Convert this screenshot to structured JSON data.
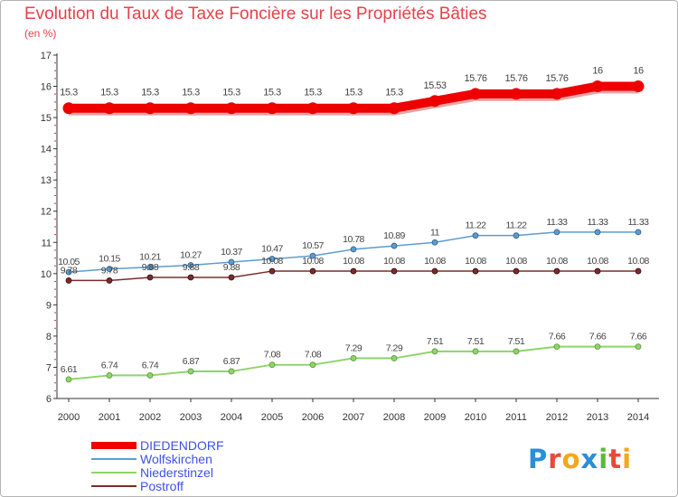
{
  "header": {
    "title": "Evolution du Taux de Taxe Foncière sur les Propriétés Bâties",
    "unit": "(en %)"
  },
  "logo": {
    "text": "Proxiti",
    "letters": [
      {
        "ch": "P",
        "color": "#2a8fd6"
      },
      {
        "ch": "r",
        "color": "#e84a3a"
      },
      {
        "ch": "o",
        "color": "#f2a81d"
      },
      {
        "ch": "x",
        "color": "#2a8fd6"
      },
      {
        "ch": "i",
        "color": "#5cb83c"
      },
      {
        "ch": "t",
        "color": "#e84a3a"
      },
      {
        "ch": "i",
        "color": "#f2a81d"
      }
    ]
  },
  "chart_data": {
    "type": "line",
    "title": "Evolution du Taux de Taxe Foncière sur les Propriétés Bâties",
    "subtitle": "(en %)",
    "x": [
      "2000",
      "2001",
      "2002",
      "2003",
      "2004",
      "2005",
      "2006",
      "2007",
      "2008",
      "2009",
      "2010",
      "2011",
      "2012",
      "2013",
      "2014"
    ],
    "ylim": [
      6,
      17
    ],
    "yticks": [
      "6",
      "7",
      "8",
      "9",
      "10",
      "11",
      "12",
      "13",
      "14",
      "15",
      "16",
      "17"
    ],
    "grid": false,
    "legend_position": "bottom-left",
    "series": [
      {
        "name": "DIEDENDORF",
        "color": "#ee0000",
        "values": [
          15.3,
          15.3,
          15.3,
          15.3,
          15.3,
          15.3,
          15.3,
          15.3,
          15.3,
          15.53,
          15.76,
          15.76,
          15.76,
          16,
          16
        ],
        "labels": [
          "15.3",
          "15.3",
          "15.3",
          "15.3",
          "15.3",
          "15.3",
          "15.3",
          "15.3",
          "15.3",
          "15.53",
          "15.76",
          "15.76",
          "15.76",
          "16",
          "16"
        ]
      },
      {
        "name": "Wolfskirchen",
        "color": "#5e9ccf",
        "values": [
          10.05,
          10.15,
          10.21,
          10.27,
          10.37,
          10.47,
          10.57,
          10.78,
          10.89,
          11,
          11.22,
          11.22,
          11.33,
          11.33,
          11.33
        ],
        "labels": [
          "10.05",
          "10.15",
          "10.21",
          "10.27",
          "10.37",
          "10.47",
          "10.57",
          "10.78",
          "10.89",
          "11",
          "11.22",
          "11.22",
          "11.33",
          "11.33",
          "11.33"
        ]
      },
      {
        "name": "Niederstinzel",
        "color": "#8fd46a",
        "values": [
          6.61,
          6.74,
          6.74,
          6.87,
          6.87,
          7.08,
          7.08,
          7.29,
          7.29,
          7.51,
          7.51,
          7.51,
          7.66,
          7.66,
          7.66
        ],
        "labels": [
          "6.61",
          "6.74",
          "6.74",
          "6.87",
          "6.87",
          "7.08",
          "7.08",
          "7.29",
          "7.29",
          "7.51",
          "7.51",
          "7.51",
          "7.66",
          "7.66",
          "7.66"
        ]
      },
      {
        "name": "Postroff",
        "color": "#7a2b2b",
        "values": [
          9.78,
          9.78,
          9.88,
          9.88,
          9.88,
          10.08,
          10.08,
          10.08,
          10.08,
          10.08,
          10.08,
          10.08,
          10.08,
          10.08,
          10.08
        ],
        "labels": [
          "9.78",
          "9.78",
          "9.88",
          "9.88",
          "9.88",
          "10.08",
          "10.08",
          "10.08",
          "10.08",
          "10.08",
          "10.08",
          "10.08",
          "10.08",
          "10.08",
          "10.08"
        ]
      }
    ]
  }
}
